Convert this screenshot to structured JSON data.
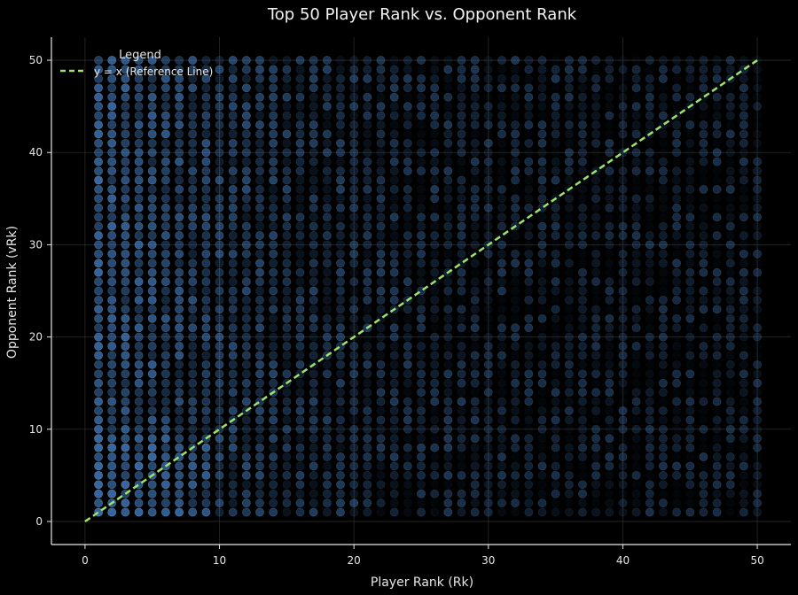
{
  "chart_data": {
    "type": "scatter",
    "title": "Top 50 Player Rank vs. Opponent Rank",
    "xlabel": "Player Rank (Rk)",
    "ylabel": "Opponent Rank (vRk)",
    "xlim": [
      -2.5,
      52.5
    ],
    "ylim": [
      -2.5,
      52.5
    ],
    "x_ticks": [
      0,
      10,
      20,
      30,
      40,
      50
    ],
    "y_ticks": [
      0,
      10,
      20,
      30,
      40,
      50
    ],
    "grid": true,
    "legend": {
      "title": "Legend",
      "position": "top-left",
      "entries": [
        "y = x (Reference Line)"
      ]
    },
    "series": [
      {
        "type": "scatter",
        "x_range": [
          1,
          50
        ],
        "y_range": [
          1,
          50
        ],
        "grid_step": 1,
        "note_density": "higher near low player ranks",
        "color": "#4a90e2"
      },
      {
        "name": "y = x (Reference Line)",
        "type": "line",
        "x": [
          0,
          50
        ],
        "y": [
          0,
          50
        ],
        "style": "dashed",
        "color": "#9be36f"
      }
    ]
  }
}
